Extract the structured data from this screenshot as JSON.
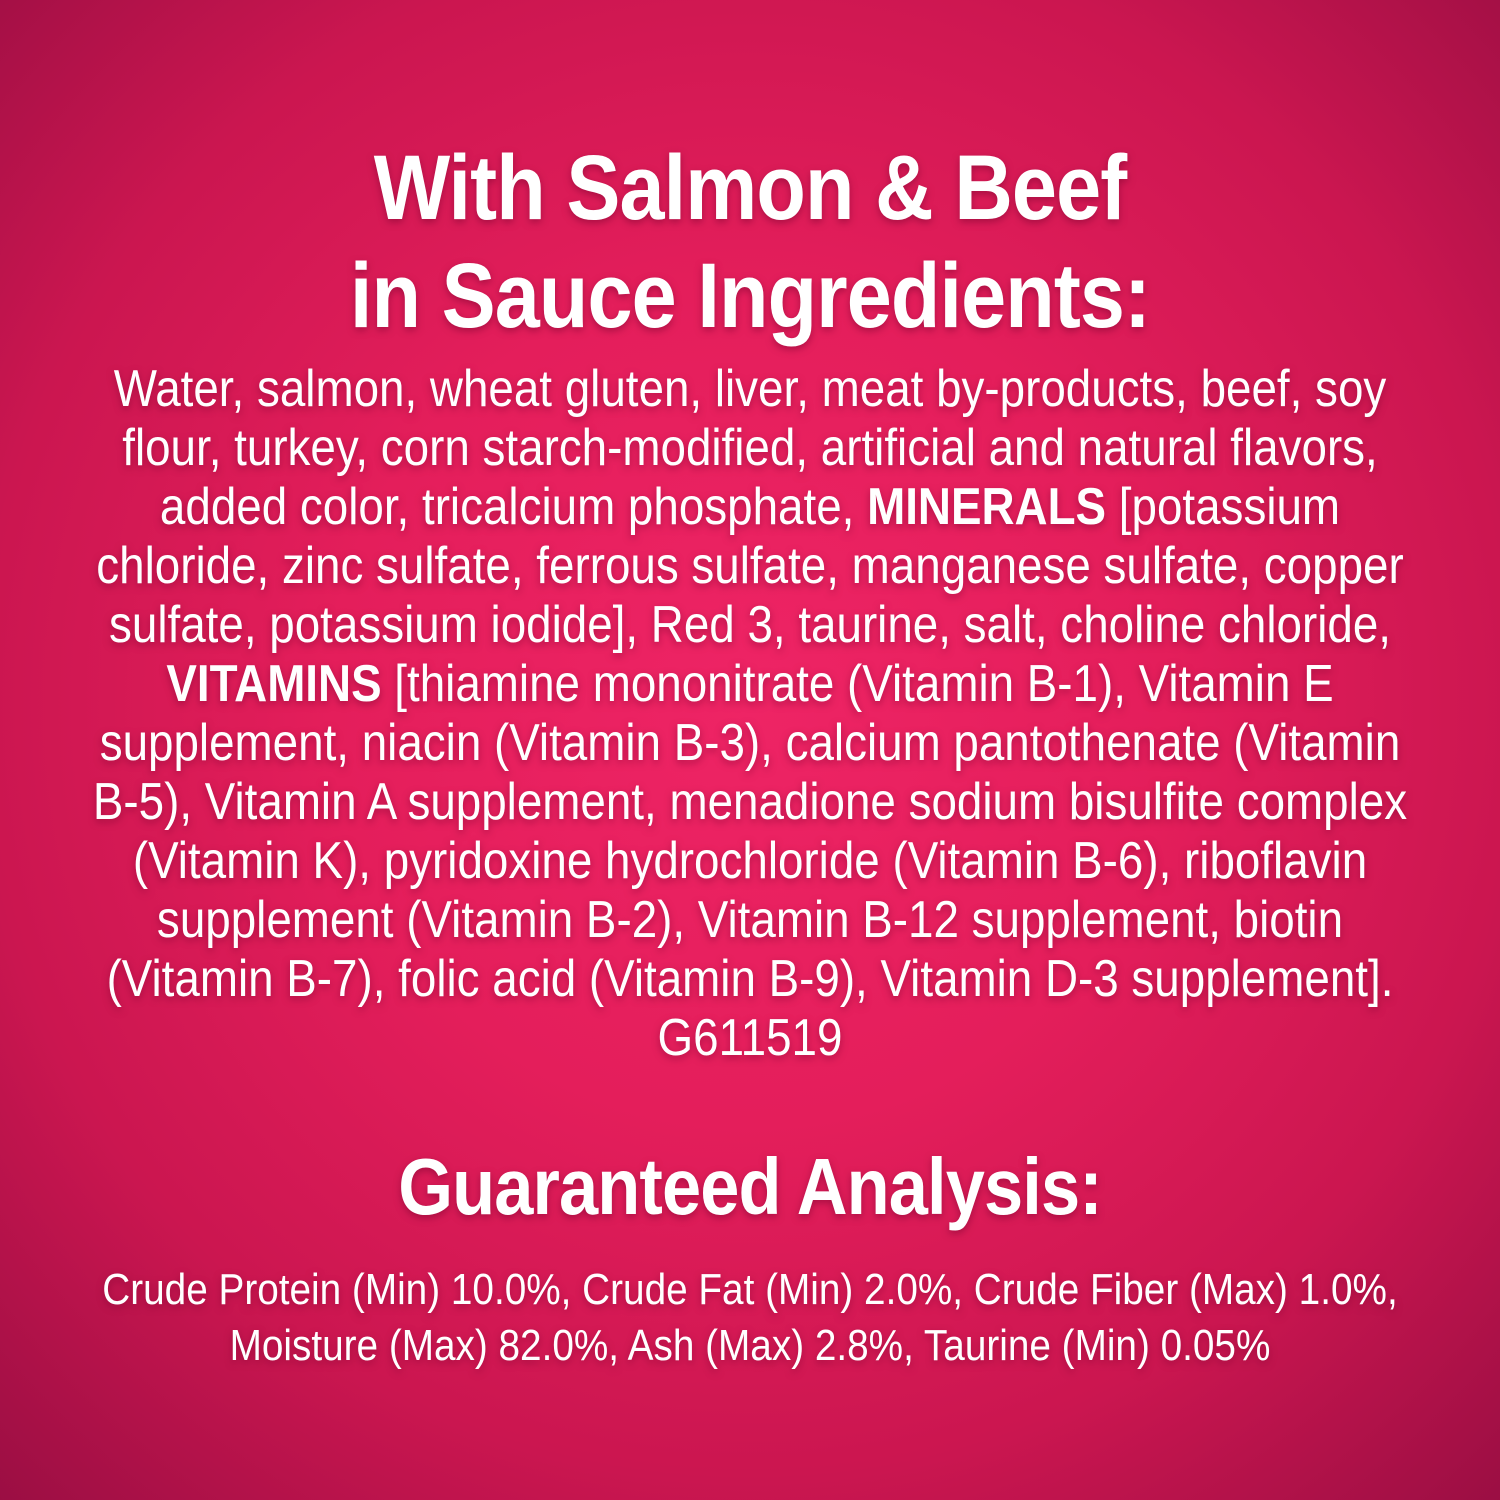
{
  "colors": {
    "background_center": "#ee2465",
    "background_mid": "#cb1650",
    "background_edge": "#9a0e43",
    "text": "#ffffff"
  },
  "title": {
    "lines": [
      "With Salmon & Beef",
      "in Sauce Ingredients:"
    ]
  },
  "ingredients": {
    "lines": [
      [
        {
          "t": "Water, salmon, wheat gluten, liver, meat by-products, beef, soy",
          "b": false
        }
      ],
      [
        {
          "t": "flour, turkey, corn starch-modified, artificial and natural flavors,",
          "b": false
        }
      ],
      [
        {
          "t": "added color, tricalcium phosphate, ",
          "b": false
        },
        {
          "t": "MINERALS",
          "b": true
        },
        {
          "t": " [potassium",
          "b": false
        }
      ],
      [
        {
          "t": "chloride, zinc sulfate, ferrous sulfate, manganese sulfate, copper",
          "b": false
        }
      ],
      [
        {
          "t": "sulfate, potassium iodide], Red 3, taurine, salt, choline chloride,",
          "b": false
        }
      ],
      [
        {
          "t": "VITAMINS",
          "b": true
        },
        {
          "t": " [thiamine mononitrate (Vitamin B-1), Vitamin E",
          "b": false
        }
      ],
      [
        {
          "t": "supplement, niacin (Vitamin B-3), calcium pantothenate (Vitamin",
          "b": false
        }
      ],
      [
        {
          "t": "B-5), Vitamin A supplement, menadione sodium bisulfite complex",
          "b": false
        }
      ],
      [
        {
          "t": "(Vitamin K), pyridoxine hydrochloride (Vitamin B-6), riboflavin",
          "b": false
        }
      ],
      [
        {
          "t": "supplement (Vitamin B-2), Vitamin B-12 supplement, biotin",
          "b": false
        }
      ],
      [
        {
          "t": "(Vitamin B-7), folic acid (Vitamin B-9), Vitamin D-3 supplement].",
          "b": false
        }
      ],
      [
        {
          "t": "G611519",
          "b": false
        }
      ]
    ]
  },
  "guaranteed_analysis": {
    "heading": "Guaranteed Analysis:",
    "lines": [
      "Crude Protein (Min) 10.0%, Crude Fat (Min) 2.0%, Crude Fiber (Max) 1.0%,",
      "Moisture (Max) 82.0%, Ash (Max) 2.8%, Taurine (Min) 0.05%"
    ]
  }
}
